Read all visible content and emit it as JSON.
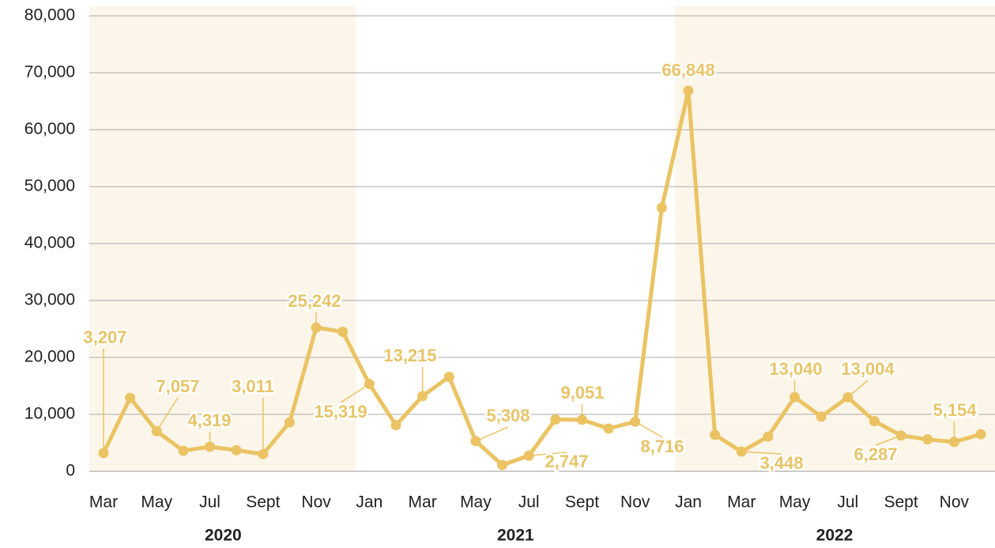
{
  "chart_data": {
    "type": "line",
    "categories": [
      "Mar",
      null,
      "May",
      null,
      "Jul",
      null,
      "Sept",
      null,
      "Nov",
      null,
      "Jan",
      null,
      "Mar",
      null,
      "May",
      null,
      "Jul",
      null,
      "Sept",
      null,
      "Nov",
      null,
      "Jan",
      null,
      "Mar",
      null,
      "May",
      null,
      "Jul",
      null,
      "Sept",
      null,
      "Nov",
      null
    ],
    "x_groups": [
      {
        "label": "2020",
        "start": 0,
        "end": 9
      },
      {
        "label": "2021",
        "start": 10,
        "end": 21
      },
      {
        "label": "2022",
        "start": 22,
        "end": 33
      }
    ],
    "series": [
      {
        "name": null,
        "color": "#ebc363",
        "values": [
          3207,
          12900,
          7057,
          3600,
          4319,
          3700,
          3011,
          8600,
          25242,
          24500,
          15319,
          8100,
          13215,
          16600,
          5308,
          1100,
          2747,
          9100,
          9051,
          7500,
          8716,
          46300,
          66848,
          6400,
          3448,
          6100,
          13040,
          9600,
          13004,
          8800,
          6287,
          5600,
          5154,
          6500
        ],
        "value_labels": [
          "3,207",
          null,
          "7,057",
          null,
          "4,319",
          null,
          "3,011",
          null,
          "25,242",
          null,
          "15,319",
          null,
          "13,215",
          null,
          "5,308",
          null,
          "2,747",
          null,
          "9,051",
          null,
          "8,716",
          null,
          "66,848",
          null,
          "3,448",
          null,
          "13,040",
          null,
          "13,004",
          null,
          "6,287",
          null,
          "5,154",
          null
        ]
      }
    ],
    "ylim": [
      0,
      80000
    ],
    "yticks": [
      {
        "value": 0,
        "label": "0"
      },
      {
        "value": 10000,
        "label": "10,000"
      },
      {
        "value": 20000,
        "label": "20,000"
      },
      {
        "value": 30000,
        "label": "30,000"
      },
      {
        "value": 40000,
        "label": "40,000"
      },
      {
        "value": 50000,
        "label": "50,000"
      },
      {
        "value": 60000,
        "label": "60,000"
      },
      {
        "value": 70000,
        "label": "70,000"
      },
      {
        "value": 80000,
        "label": "80,000"
      }
    ],
    "grid": true,
    "shaded_groups": [
      0,
      2
    ]
  }
}
